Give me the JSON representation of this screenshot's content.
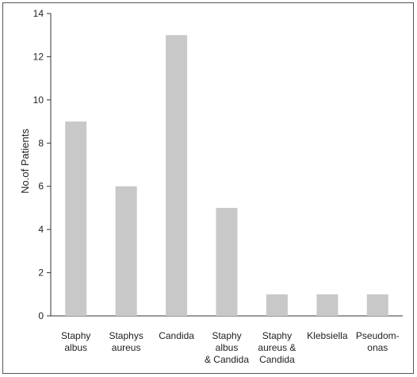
{
  "chart_data": {
    "type": "bar",
    "title": "",
    "xlabel": "",
    "ylabel": "No.of Patients",
    "ylim": [
      0,
      14
    ],
    "yticks": [
      0,
      2,
      4,
      6,
      8,
      10,
      12,
      14
    ],
    "grid": false,
    "categories": [
      [
        "Staphy",
        "albus"
      ],
      [
        "Staphys",
        "aureus"
      ],
      [
        "Candida"
      ],
      [
        "Staphy",
        "albus",
        "& Candida"
      ],
      [
        "Staphy",
        "aureus &",
        "Candida"
      ],
      [
        "Klebsiella"
      ],
      [
        "Pseudom-",
        "onas"
      ]
    ],
    "values": [
      9,
      6,
      13,
      5,
      1,
      1,
      1
    ],
    "colors": {
      "bar": "#c8c8c8",
      "axis": "#333333"
    }
  }
}
